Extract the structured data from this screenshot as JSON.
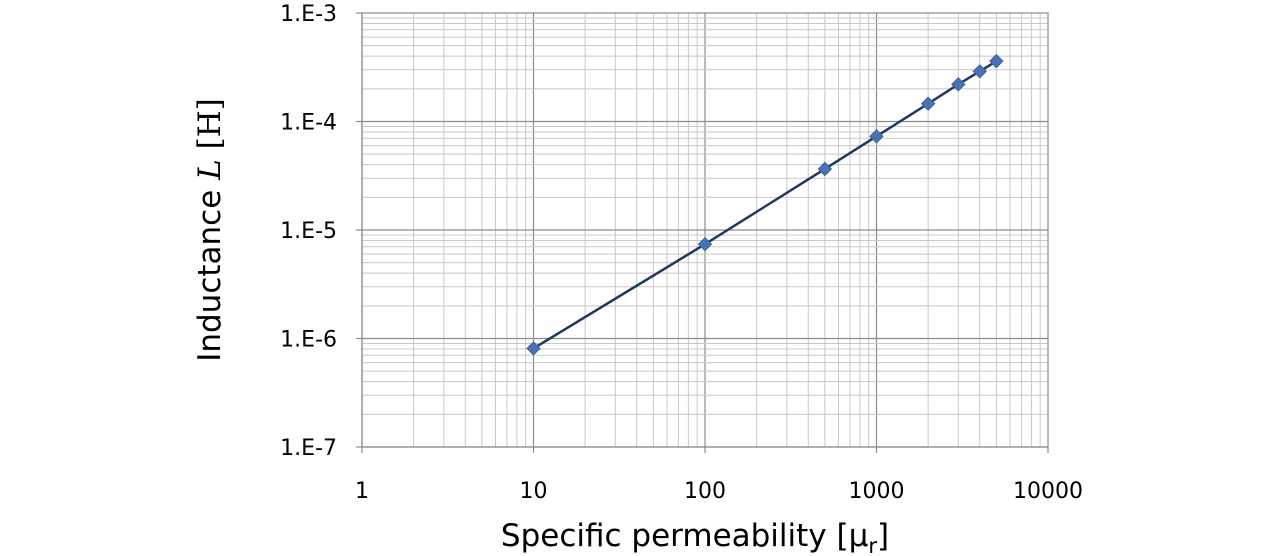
{
  "chart_data": {
    "type": "scatter",
    "xscale": "log",
    "yscale": "log",
    "xlim": [
      1,
      10000
    ],
    "ylim": [
      1e-07,
      0.001
    ],
    "grid": true,
    "minor_grid": true,
    "xlabel_text": "Specific permeability [μ",
    "xlabel_sub": "r",
    "xlabel_close": "]",
    "ylabel_text": "Inductance ",
    "ylabel_var": "L",
    "ylabel_unit": " [H]",
    "xticks": [
      {
        "value": 1,
        "label": "1"
      },
      {
        "value": 10,
        "label": "10"
      },
      {
        "value": 100,
        "label": "100"
      },
      {
        "value": 1000,
        "label": "1000"
      },
      {
        "value": 10000,
        "label": "10000"
      }
    ],
    "yticks": [
      {
        "value": 0.001,
        "label": "1.E-3"
      },
      {
        "value": 0.0001,
        "label": "1.E-4"
      },
      {
        "value": 1e-05,
        "label": "1.E-5"
      },
      {
        "value": 1e-06,
        "label": "1.E-6"
      },
      {
        "value": 1e-07,
        "label": "1.E-7"
      }
    ],
    "series": [
      {
        "marker": "diamond",
        "line": true,
        "color": "#4a72b8",
        "line_color": "#1f3864",
        "x": [
          10,
          100,
          500,
          1000,
          2000,
          3000,
          4000,
          5000
        ],
        "y": [
          8.1e-07,
          7.4e-06,
          3.65e-05,
          7.3e-05,
          0.000146,
          0.00022,
          0.00029,
          0.00036
        ]
      }
    ]
  }
}
